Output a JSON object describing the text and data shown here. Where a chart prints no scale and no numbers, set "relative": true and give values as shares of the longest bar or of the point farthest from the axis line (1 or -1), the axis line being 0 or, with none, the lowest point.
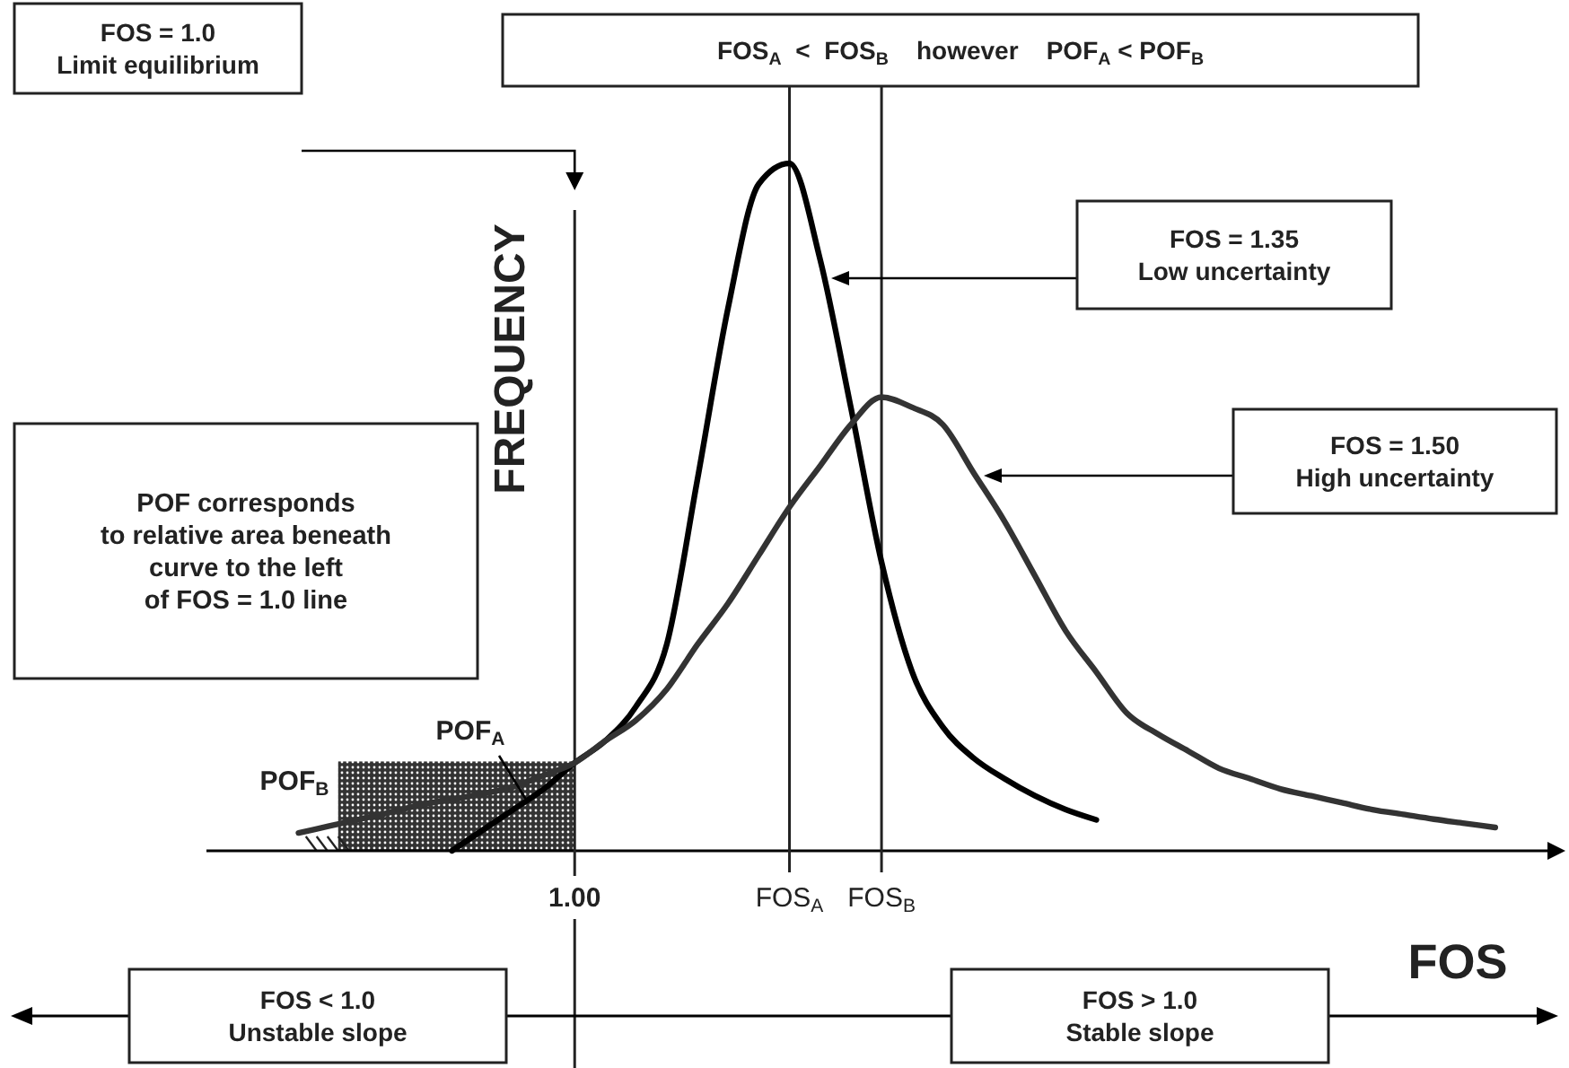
{
  "chart_data": {
    "type": "line",
    "relative": true,
    "grid": "x",
    "xlabel": "FOS",
    "ylabel": "FREQUENCY",
    "categories": [
      null,
      null,
      null,
      null,
      null,
      null,
      null,
      null,
      null,
      null,
      null,
      null,
      "1.00",
      null,
      null,
      null,
      null,
      null,
      null,
      "FOS$_{A}$",
      null,
      null,
      "FOS$_{B}$",
      null,
      null,
      null,
      null,
      null,
      null,
      null,
      null,
      null,
      null,
      null,
      null,
      null,
      null,
      null,
      null,
      null,
      null,
      null,
      null,
      null
    ],
    "series": [
      {
        "color": "#000000",
        "values": [
          null,
          null,
          null,
          null,
          null,
          null,
          null,
          null,
          0,
          0.03,
          0.06,
          0.09,
          0.128,
          0.16,
          0.21,
          0.3,
          0.54,
          0.79,
          0.97,
          1,
          0.86,
          0.645,
          0.42,
          0.26,
          0.18,
          0.135,
          0.105,
          0.08,
          0.06,
          0.045,
          null,
          null,
          null,
          null,
          null,
          null,
          null,
          null,
          null,
          null,
          null,
          null,
          null,
          null
        ]
      },
      {
        "color": "#333333",
        "values": [
          null,
          null,
          null,
          0.026,
          0.036,
          0.046,
          0.056,
          0.067,
          0.075,
          0.083,
          0.093,
          0.11,
          0.128,
          0.16,
          0.19,
          0.235,
          0.3,
          0.36,
          0.43,
          0.5,
          0.56,
          0.62,
          0.66,
          0.645,
          0.62,
          0.55,
          0.48,
          0.4,
          0.32,
          0.26,
          0.2,
          0.17,
          0.145,
          0.12,
          0.105,
          0.09,
          0.08,
          0.07,
          0.06,
          0.053,
          0.046,
          0.04,
          0.034,
          null
        ]
      }
    ],
    "annotations": [
      "FOS = 1.0\nLimit equilibrium",
      "FOS$_{A}$  <  FOS$_{B}$    however    POF$_{A}$ < POF$_{B}$",
      "FOS = 1.35\nLow uncertainty",
      "FOS = 1.50\nHigh uncertainty",
      "POF corresponds\nto relative area beneath\ncurve to the left\nof FOS = 1.0 line",
      "POF$_{A}$",
      "POF$_{B}$",
      "FOS < 1.0\nUnstable slope",
      "FOS > 1.0\nStable slope"
    ]
  }
}
